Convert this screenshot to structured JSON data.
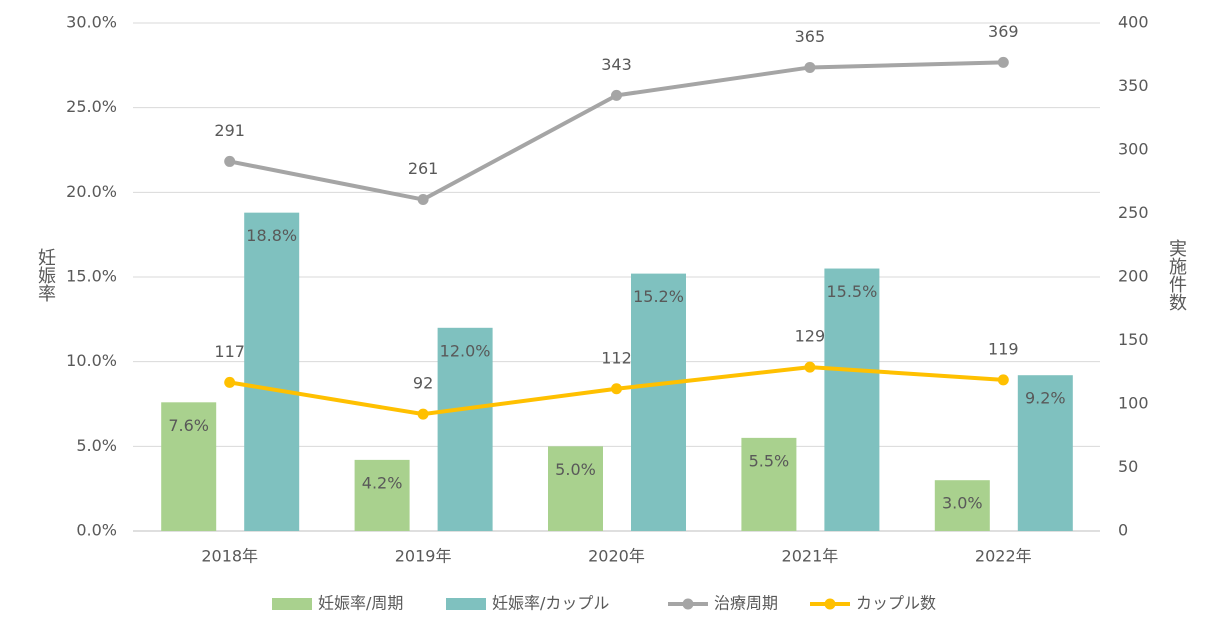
{
  "chart_data": {
    "type": "combo",
    "categories": [
      "2018年",
      "2019年",
      "2020年",
      "2021年",
      "2022年"
    ],
    "series": [
      {
        "name": "妊娠率/周期",
        "type": "bar",
        "color": "#a9d18e",
        "values": [
          7.6,
          4.2,
          5.0,
          5.5,
          3.0
        ],
        "value_labels": [
          "7.6%",
          "4.2%",
          "5.0%",
          "5.5%",
          "3.0%"
        ]
      },
      {
        "name": "妊娠率/カップル",
        "type": "bar",
        "color": "#7fc1bf",
        "values": [
          18.8,
          12.0,
          15.2,
          15.5,
          9.2
        ],
        "value_labels": [
          "18.8%",
          "12.0%",
          "15.2%",
          "15.5%",
          "9.2%"
        ]
      },
      {
        "name": "治療周期",
        "type": "line",
        "axis": "y2",
        "color": "#a5a5a5",
        "values": [
          291,
          261,
          343,
          365,
          369
        ]
      },
      {
        "name": "カップル数",
        "type": "line",
        "axis": "y2",
        "color": "#ffc000",
        "values": [
          117,
          92,
          112,
          129,
          119
        ]
      }
    ],
    "ylabel": "妊娠率",
    "y2label": "実施件数",
    "ylim": [
      0,
      30
    ],
    "yticks": [
      {
        "value": 0,
        "label": "0.0%"
      },
      {
        "value": 5,
        "label": "5.0%"
      },
      {
        "value": 10,
        "label": "10.0%"
      },
      {
        "value": 15,
        "label": "15.0%"
      },
      {
        "value": 20,
        "label": "20.0%"
      },
      {
        "value": 25,
        "label": "25.0%"
      },
      {
        "value": 30,
        "label": "30.0%"
      }
    ],
    "y2lim": [
      0,
      400
    ],
    "y2ticks": [
      0,
      50,
      100,
      150,
      200,
      250,
      300,
      350,
      400
    ],
    "grid": true
  }
}
